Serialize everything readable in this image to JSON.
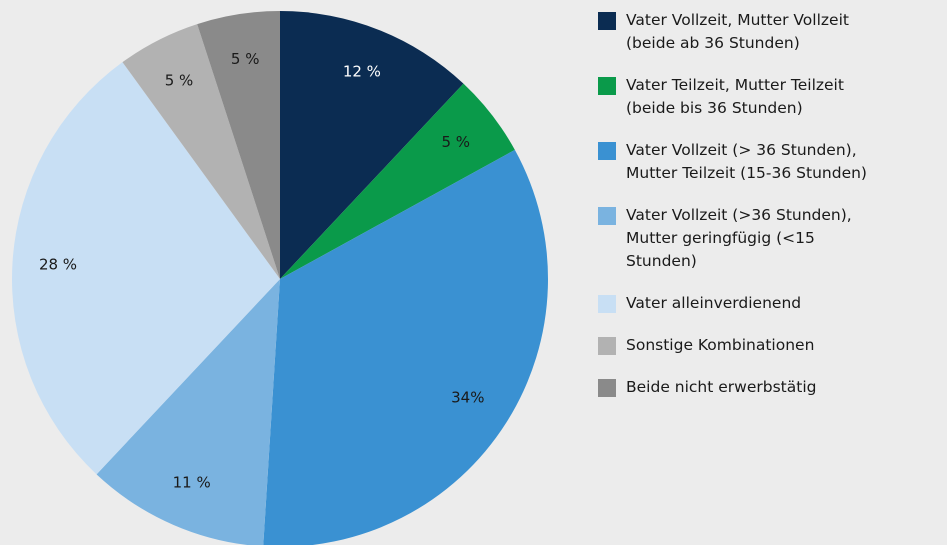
{
  "chart_data": {
    "type": "pie",
    "categories": [
      "Vater Vollzeit, Mutter Vollzeit (beide ab 36 Stunden)",
      "Vater Teilzeit, Mutter Teilzeit (beide bis 36 Stunden)",
      "Vater Vollzeit (> 36 Stunden), Mutter Teilzeit (15-36 Stunden)",
      "Vater Vollzeit (>36 Stunden), Mutter geringfügig (<15 Stunden)",
      "Vater alleinverdienend",
      "Sonstige Kombinationen",
      "Beide nicht erwerbstätig"
    ],
    "values": [
      12,
      5,
      34,
      11,
      28,
      5,
      5
    ],
    "value_labels": [
      "12 %",
      "5 %",
      "34%",
      "11 %",
      "28 %",
      "5 %",
      "5 %"
    ],
    "colors": [
      "#0b2c52",
      "#0a9a4a",
      "#3a91d2",
      "#7ab3e0",
      "#c8dff4",
      "#b2b2b2",
      "#8a8a8a"
    ]
  }
}
